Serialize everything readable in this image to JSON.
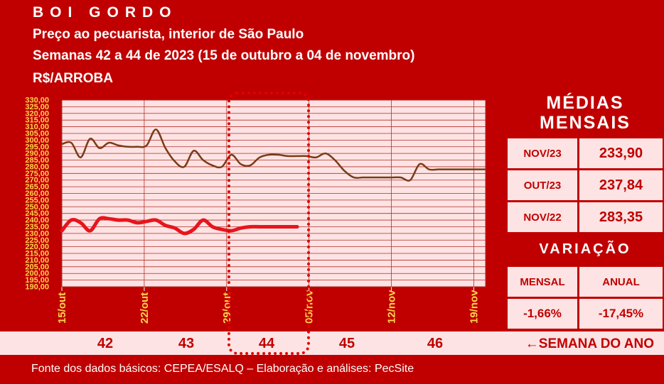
{
  "header": {
    "title": "BOI GORDO",
    "subtitle1": "Preço ao pecuarista, interior de São Paulo",
    "subtitle2": "Semanas 42 a 44 de 2023 (15 de outubro a 04 de novembro)",
    "unit": "R$/ARROBA"
  },
  "chart_data": {
    "type": "line",
    "ylim": [
      190,
      330
    ],
    "y_ticks": [
      "190,00",
      "195,00",
      "200,00",
      "205,00",
      "210,00",
      "215,00",
      "220,00",
      "225,00",
      "230,00",
      "235,00",
      "240,00",
      "245,00",
      "250,00",
      "255,00",
      "260,00",
      "265,00",
      "270,00",
      "275,00",
      "280,00",
      "285,00",
      "290,00",
      "295,00",
      "300,00",
      "305,00",
      "310,00",
      "315,00",
      "320,00",
      "325,00",
      "330,00"
    ],
    "x_ticks": [
      "15/out",
      "22/out",
      "29/out",
      "05/nov",
      "12/nov",
      "19/nov"
    ],
    "series": [
      {
        "color": "#7a3b17",
        "x": [
          0,
          0.8,
          1.6,
          2.4,
          3.2,
          4.0,
          4.8,
          5.6,
          6.4,
          7.2,
          8.0,
          8.8,
          9.6,
          10.4,
          11.2,
          12.0,
          12.8,
          13.6,
          14.4,
          15.2,
          16.0,
          16.8,
          17.6,
          18.4,
          19.2,
          20.0,
          20.8,
          21.6,
          22.4,
          23.2,
          24.0,
          24.8,
          25.6,
          26.4,
          27.2,
          28.0,
          28.8,
          29.6,
          30.4,
          31.2,
          32.0,
          32.8,
          33.6,
          34.4,
          35.2,
          36.0
        ],
        "values": [
          297,
          298,
          287,
          301,
          294,
          298,
          296,
          295,
          295,
          296,
          308,
          294,
          284,
          280,
          292,
          285,
          281,
          280,
          289,
          282,
          281,
          287,
          289,
          289,
          288,
          288,
          288,
          287,
          290,
          285,
          277,
          272,
          272,
          272,
          272,
          272,
          272,
          270,
          282,
          278,
          278,
          278,
          278,
          278,
          278,
          278
        ]
      },
      {
        "color": "#e8141c",
        "x": [
          0,
          0.8,
          1.6,
          2.4,
          3.2,
          4.0,
          4.8,
          5.6,
          6.4,
          7.2,
          8.0,
          8.8,
          9.6,
          10.4,
          11.2,
          12.0,
          12.8,
          13.6,
          14.4,
          15.2,
          16.0,
          16.8,
          17.6,
          18.4,
          19.2,
          20.0
        ],
        "values": [
          232,
          240,
          238,
          232,
          241,
          241,
          240,
          240,
          238,
          239,
          240,
          236,
          234,
          230,
          233,
          240,
          235,
          233,
          232,
          234,
          235,
          235,
          235,
          235,
          235,
          235
        ]
      }
    ]
  },
  "weeks": {
    "numbers": [
      "42",
      "43",
      "44",
      "45",
      "46"
    ],
    "label": "SEMANA DO ANO",
    "arrow": "arrow-left-icon"
  },
  "side": {
    "medias_title": "MÉDIAS MENSAIS",
    "medias": [
      {
        "label": "NOV/23",
        "value": "233,90"
      },
      {
        "label": "OUT/23",
        "value": "237,84"
      },
      {
        "label": "NOV/22",
        "value": "283,35"
      }
    ],
    "variacao_title": "VARIAÇÃO",
    "variacao_headers": [
      "MENSAL",
      "ANUAL"
    ],
    "variacao_values": [
      "-1,66%",
      "-17,45%"
    ]
  },
  "footer": {
    "source": "Fonte dos dados básicos: CEPEA/ESALQ – Elaboração e análises: PecSite"
  },
  "colors": {
    "brand_red": "#c00000",
    "panel_pink": "#fde3e3",
    "tick_yellow": "#ffd34d"
  }
}
